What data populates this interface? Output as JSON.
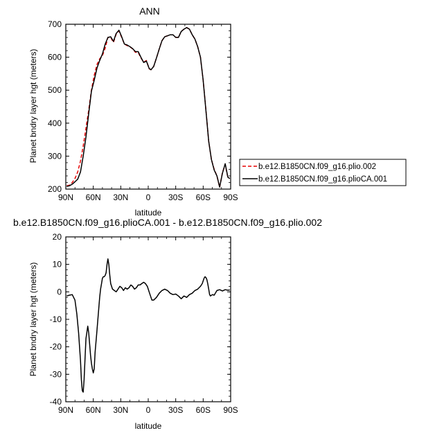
{
  "chart_data": [
    {
      "type": "line",
      "title": "ANN",
      "xlabel": "latitude",
      "ylabel": "Planet bndry layer hgt (meters)",
      "xlim": [
        90,
        -90
      ],
      "ylim": [
        200,
        700
      ],
      "xticks": [
        "90N",
        "60N",
        "30N",
        "0",
        "30S",
        "60S",
        "90S"
      ],
      "xtick_values": [
        90,
        60,
        30,
        0,
        -30,
        -60,
        -90
      ],
      "yticks": [
        200,
        300,
        400,
        500,
        600,
        700
      ],
      "legend_position": "right",
      "series": [
        {
          "name": "b.e12.B1850CN.f09_g16.plio.002",
          "color": "#e60000",
          "dash": "dashed",
          "x": [
            89,
            86,
            83,
            80,
            77,
            74,
            71,
            68,
            65,
            62,
            59,
            56,
            53,
            50,
            47,
            44,
            41,
            38,
            35,
            32,
            29,
            26,
            23,
            20,
            17,
            14,
            11,
            8,
            5,
            2,
            -1,
            -3,
            -6,
            -9,
            -12,
            -15,
            -18,
            -21,
            -24,
            -27,
            -30,
            -33,
            -36,
            -39,
            -42,
            -45,
            -48,
            -51,
            -54,
            -57,
            -60,
            -63,
            -66,
            -69,
            -72,
            -75,
            -78,
            -81,
            -84,
            -87,
            -89
          ],
          "y": [
            210,
            212,
            220,
            232,
            252,
            285,
            330,
            385,
            440,
            500,
            545,
            578,
            595,
            605,
            628,
            660,
            660,
            645,
            670,
            680,
            660,
            640,
            635,
            632,
            625,
            615,
            615,
            598,
            585,
            590,
            565,
            562,
            572,
            598,
            625,
            650,
            662,
            665,
            668,
            668,
            660,
            660,
            678,
            685,
            690,
            685,
            668,
            655,
            632,
            600,
            530,
            440,
            345,
            290,
            260,
            240,
            205,
            250,
            275,
            235,
            232
          ]
        },
        {
          "name": "b.e12.B1850CN.f09_g16.plioCA.001",
          "color": "#000000",
          "dash": "solid",
          "x": [
            89,
            86,
            83,
            80,
            77,
            74,
            71,
            68,
            65,
            62,
            59,
            56,
            53,
            50,
            47,
            44,
            41,
            38,
            35,
            32,
            29,
            26,
            23,
            20,
            17,
            14,
            11,
            8,
            5,
            2,
            -1,
            -3,
            -6,
            -9,
            -12,
            -15,
            -18,
            -21,
            -24,
            -27,
            -30,
            -33,
            -36,
            -39,
            -42,
            -45,
            -48,
            -51,
            -54,
            -57,
            -60,
            -63,
            -66,
            -69,
            -72,
            -75,
            -78,
            -81,
            -84,
            -87,
            -89
          ],
          "y": [
            208,
            210,
            215,
            222,
            230,
            252,
            300,
            358,
            430,
            497,
            530,
            567,
            590,
            610,
            640,
            660,
            662,
            648,
            672,
            682,
            662,
            640,
            637,
            632,
            626,
            617,
            617,
            600,
            584,
            588,
            566,
            562,
            572,
            598,
            625,
            650,
            662,
            665,
            668,
            668,
            660,
            660,
            678,
            685,
            690,
            685,
            668,
            655,
            632,
            600,
            530,
            438,
            345,
            290,
            258,
            240,
            206,
            248,
            277,
            236,
            232
          ]
        }
      ]
    },
    {
      "type": "line",
      "title": "b.e12.B1850CN.f09_g16.plioCA.001 - b.e12.B1850CN.f09_g16.plio.002",
      "xlabel": "latitude",
      "ylabel": "Planet bndry layer hgt (meters)",
      "xlim": [
        90,
        -90
      ],
      "ylim": [
        -40,
        20
      ],
      "xticks": [
        "90N",
        "60N",
        "30N",
        "0",
        "30S",
        "60S",
        "90S"
      ],
      "xtick_values": [
        90,
        60,
        30,
        0,
        -30,
        -60,
        -90
      ],
      "yticks": [
        -40,
        -30,
        -20,
        -10,
        0,
        10,
        20
      ],
      "series": [
        {
          "name": "",
          "color": "#000000",
          "dash": "solid",
          "x": [
            89,
            86,
            83,
            80,
            78,
            76,
            74,
            73,
            72,
            71,
            70,
            69,
            68,
            66,
            65,
            64,
            63,
            62,
            61,
            60,
            59,
            58,
            56,
            54,
            53,
            52,
            51,
            50,
            49,
            48,
            47,
            46,
            45,
            44,
            43,
            42,
            41,
            39,
            37,
            35,
            33,
            31,
            29,
            27,
            25,
            23,
            21,
            19,
            17,
            15,
            13,
            11,
            9,
            7,
            5,
            3,
            1,
            0,
            -2,
            -4,
            -6,
            -9,
            -12,
            -15,
            -18,
            -21,
            -24,
            -27,
            -30,
            -33,
            -36,
            -39,
            -42,
            -45,
            -48,
            -51,
            -54,
            -57,
            -59,
            -60,
            -61,
            -62,
            -63,
            -64,
            -65,
            -66,
            -67,
            -68,
            -70,
            -72,
            -75,
            -78,
            -81,
            -84,
            -87,
            -89
          ],
          "y": [
            -1.5,
            -1.2,
            -1,
            -3,
            -8,
            -15,
            -25,
            -32,
            -36,
            -36.5,
            -32,
            -24,
            -17,
            -12.5,
            -15,
            -19,
            -23,
            -26,
            -28,
            -29.5,
            -28,
            -22,
            -14,
            -6,
            -2,
            1,
            3,
            5,
            5.5,
            5.5,
            6,
            7,
            10,
            12,
            10,
            6,
            3,
            1,
            0.5,
            0,
            1,
            2,
            1.5,
            0.5,
            1.5,
            1,
            1.5,
            2.5,
            2,
            1,
            1.5,
            2.5,
            2.5,
            3,
            3.5,
            3,
            2,
            1,
            -1,
            -3,
            -3,
            -2,
            -0.5,
            0.5,
            1,
            0.5,
            -0.5,
            -1,
            -0.8,
            -1.5,
            -2.5,
            -1.5,
            -2,
            -1,
            -0.5,
            0.5,
            1,
            2,
            3,
            4,
            5,
            5.5,
            5.2,
            4.5,
            3,
            1,
            -1,
            -1.5,
            -1,
            -1.2,
            0.5,
            0.8,
            0.3,
            0.8,
            0.6,
            0.7
          ]
        }
      ]
    }
  ]
}
